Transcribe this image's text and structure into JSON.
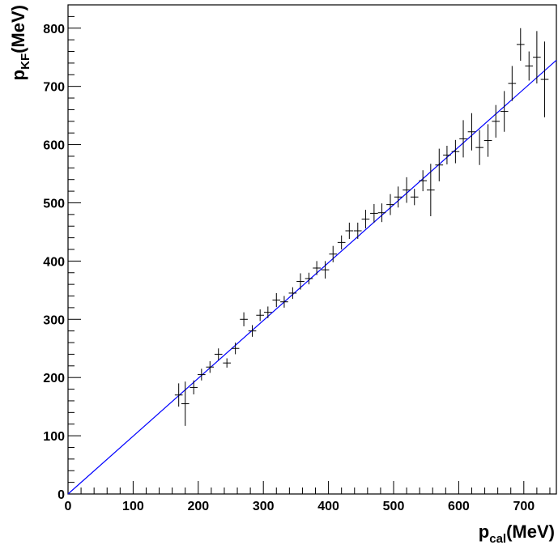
{
  "chart_data": {
    "type": "scatter",
    "xlabel": {
      "main": "p",
      "sub": "cal",
      "unit": "(MeV)"
    },
    "ylabel": {
      "main": "p",
      "sub": "KF",
      "unit": "(MeV)"
    },
    "xlim": [
      0,
      750
    ],
    "ylim": [
      0,
      840
    ],
    "x_ticks": [
      0,
      100,
      200,
      300,
      400,
      500,
      600,
      700
    ],
    "y_ticks": [
      0,
      100,
      200,
      300,
      400,
      500,
      600,
      700,
      800
    ],
    "grid": false,
    "legend": "none",
    "colors": {
      "points": "#000000",
      "fit_line": "#0000ff",
      "frame": "#000000"
    },
    "fit_line": {
      "x": [
        0,
        750
      ],
      "y": [
        0,
        745
      ]
    },
    "series": [
      {
        "x": [
          170,
          180,
          193,
          205,
          218,
          231,
          244,
          257,
          270,
          283,
          295,
          307,
          320,
          332,
          345,
          357,
          370,
          382,
          395,
          407,
          420,
          432,
          445,
          457,
          470,
          482,
          495,
          507,
          520,
          532,
          545,
          557,
          570,
          582,
          595,
          607,
          620,
          632,
          645,
          657,
          670,
          682,
          695,
          708,
          720,
          732
        ],
        "y": [
          170,
          155,
          183,
          205,
          218,
          240,
          225,
          250,
          300,
          280,
          307,
          312,
          333,
          330,
          345,
          365,
          370,
          388,
          385,
          412,
          432,
          452,
          452,
          472,
          482,
          483,
          497,
          510,
          522,
          510,
          538,
          522,
          565,
          582,
          588,
          610,
          622,
          595,
          607,
          640,
          657,
          705,
          772,
          735,
          750,
          712
        ],
        "yerr": [
          20,
          38,
          12,
          10,
          10,
          10,
          8,
          10,
          12,
          10,
          10,
          10,
          12,
          10,
          10,
          14,
          10,
          12,
          15,
          14,
          12,
          14,
          14,
          16,
          16,
          16,
          18,
          18,
          22,
          14,
          18,
          45,
          28,
          16,
          20,
          32,
          32,
          30,
          28,
          28,
          35,
          30,
          28,
          25,
          45,
          65
        ],
        "xerr": 6
      }
    ]
  }
}
